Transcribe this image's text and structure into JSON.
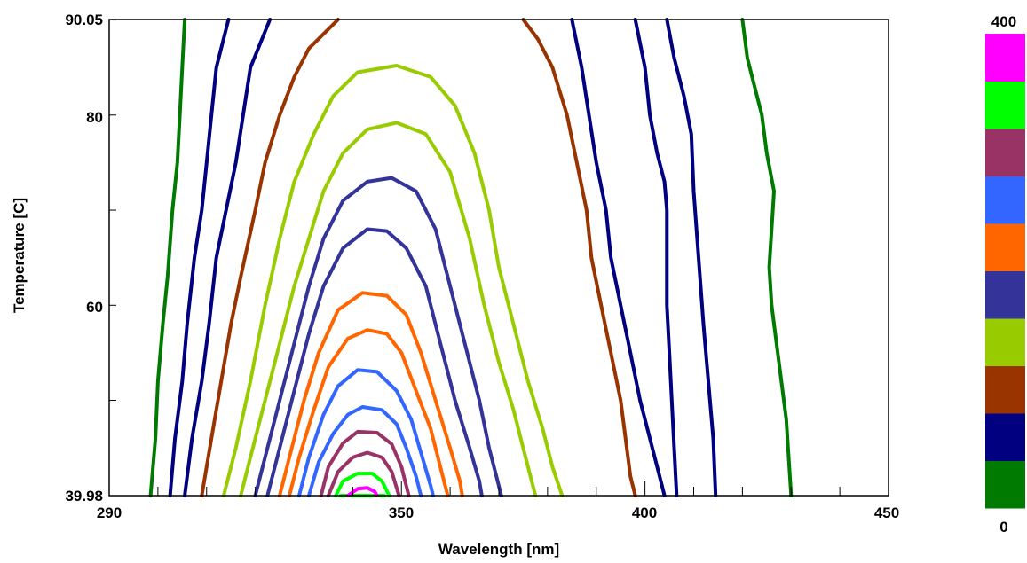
{
  "chart_data": {
    "type": "contour",
    "xlabel": "Wavelength [nm]",
    "ylabel": "Temperature [C]",
    "xlim": [
      290,
      450
    ],
    "ylim": [
      39.98,
      90.05
    ],
    "x_ticks": [
      "290",
      "350",
      "400",
      "450"
    ],
    "y_ticks": [
      "39.98",
      "60",
      "80",
      "90.05"
    ],
    "colorbar": {
      "min_label": "0",
      "max_label": "400",
      "colors": [
        "#007a00",
        "#000080",
        "#993300",
        "#99cc00",
        "#333399",
        "#ff6600",
        "#3366ff",
        "#993366",
        "#00ff00",
        "#ff00ff"
      ]
    },
    "contours": [
      {
        "color": "#007a00",
        "points": [
          [
            298.5,
            39.98
          ],
          [
            299.5,
            46
          ],
          [
            300,
            52
          ],
          [
            301,
            58
          ],
          [
            302,
            63
          ],
          [
            303,
            70
          ],
          [
            304,
            75
          ],
          [
            304.5,
            80
          ],
          [
            305,
            85
          ],
          [
            305.5,
            90.05
          ]
        ]
      },
      {
        "color": "#000080",
        "points": [
          [
            302.5,
            39.98
          ],
          [
            303.5,
            46
          ],
          [
            305,
            52
          ],
          [
            306,
            58
          ],
          [
            307.5,
            65
          ],
          [
            309,
            70
          ],
          [
            310,
            75
          ],
          [
            311,
            80
          ],
          [
            312,
            85
          ],
          [
            314.5,
            90.05
          ]
        ]
      },
      {
        "color": "#000080",
        "points": [
          [
            305.5,
            39.98
          ],
          [
            307,
            46
          ],
          [
            309,
            52
          ],
          [
            310.5,
            58
          ],
          [
            312,
            65
          ],
          [
            314,
            70
          ],
          [
            316,
            75
          ],
          [
            317.5,
            80
          ],
          [
            319,
            85
          ],
          [
            323,
            90.05
          ]
        ]
      },
      {
        "color": "#993300",
        "points": [
          [
            309,
            39.98
          ],
          [
            311,
            46
          ],
          [
            313,
            52
          ],
          [
            315,
            58
          ],
          [
            317,
            63
          ],
          [
            320,
            70
          ],
          [
            322,
            75
          ],
          [
            325,
            80
          ],
          [
            328,
            84
          ],
          [
            331,
            87
          ],
          [
            337,
            90.05
          ]
        ]
      },
      {
        "color": "#99cc00",
        "points": [
          [
            313.5,
            39.98
          ],
          [
            316,
            45
          ],
          [
            319,
            52
          ],
          [
            322,
            60
          ],
          [
            325,
            67
          ],
          [
            328,
            73
          ],
          [
            332,
            78
          ],
          [
            336,
            82
          ],
          [
            341,
            84.5
          ],
          [
            349,
            85.2
          ],
          [
            356,
            84
          ],
          [
            361,
            81
          ],
          [
            365,
            76
          ],
          [
            368,
            70
          ],
          [
            370,
            64
          ],
          [
            373,
            58
          ],
          [
            376,
            52
          ],
          [
            379,
            47
          ],
          [
            381,
            43
          ],
          [
            383,
            39.98
          ]
        ]
      },
      {
        "color": "#99cc00",
        "points": [
          [
            317,
            39.98
          ],
          [
            319,
            44
          ],
          [
            322,
            50
          ],
          [
            325,
            56
          ],
          [
            328,
            62
          ],
          [
            331,
            67
          ],
          [
            334,
            72
          ],
          [
            338,
            76
          ],
          [
            343,
            78.5
          ],
          [
            349,
            79.2
          ],
          [
            355,
            78
          ],
          [
            360,
            74
          ],
          [
            364,
            67
          ],
          [
            367,
            60
          ],
          [
            370,
            54
          ],
          [
            373,
            49
          ],
          [
            375,
            45
          ],
          [
            377,
            41
          ],
          [
            377.5,
            39.98
          ]
        ]
      },
      {
        "color": "#333399",
        "points": [
          [
            320,
            39.98
          ],
          [
            322,
            44
          ],
          [
            325,
            50
          ],
          [
            328,
            56
          ],
          [
            331,
            62
          ],
          [
            334,
            67
          ],
          [
            338,
            71
          ],
          [
            343,
            73
          ],
          [
            348,
            73.4
          ],
          [
            353,
            72
          ],
          [
            357,
            68
          ],
          [
            360,
            62
          ],
          [
            363,
            56
          ],
          [
            366,
            50
          ],
          [
            368,
            45
          ],
          [
            370,
            41
          ],
          [
            370.5,
            39.98
          ]
        ]
      },
      {
        "color": "#333399",
        "points": [
          [
            322.5,
            39.98
          ],
          [
            325,
            45
          ],
          [
            328,
            51
          ],
          [
            331,
            57
          ],
          [
            334,
            62
          ],
          [
            338,
            66
          ],
          [
            343,
            68
          ],
          [
            347,
            67.8
          ],
          [
            351,
            66
          ],
          [
            355,
            62
          ],
          [
            358,
            56
          ],
          [
            361,
            50
          ],
          [
            364,
            45
          ],
          [
            366,
            41.5
          ],
          [
            366.5,
            39.98
          ]
        ]
      },
      {
        "color": "#ff6600",
        "points": [
          [
            325,
            39.98
          ],
          [
            327,
            44
          ],
          [
            330,
            50
          ],
          [
            333,
            55
          ],
          [
            337,
            59.5
          ],
          [
            342,
            61.3
          ],
          [
            347,
            61
          ],
          [
            351,
            59
          ],
          [
            354,
            55
          ],
          [
            357,
            50
          ],
          [
            360,
            45
          ],
          [
            362,
            41.5
          ],
          [
            362.5,
            39.98
          ]
        ]
      },
      {
        "color": "#ff6600",
        "points": [
          [
            327,
            39.98
          ],
          [
            329,
            44
          ],
          [
            332,
            49
          ],
          [
            335,
            53.5
          ],
          [
            339,
            56.5
          ],
          [
            343,
            57.4
          ],
          [
            347,
            57
          ],
          [
            350,
            55
          ],
          [
            353,
            51
          ],
          [
            356,
            47
          ],
          [
            358,
            43
          ],
          [
            359.5,
            39.98
          ]
        ]
      },
      {
        "color": "#3366ff",
        "points": [
          [
            329,
            39.98
          ],
          [
            331,
            44
          ],
          [
            334,
            48.5
          ],
          [
            337,
            51.5
          ],
          [
            341,
            53.2
          ],
          [
            345,
            53
          ],
          [
            349,
            51
          ],
          [
            352,
            48
          ],
          [
            354,
            44.5
          ],
          [
            356,
            41
          ],
          [
            356.5,
            39.98
          ]
        ]
      },
      {
        "color": "#3366ff",
        "points": [
          [
            331,
            39.98
          ],
          [
            333,
            43.5
          ],
          [
            336,
            46.5
          ],
          [
            339,
            48.5
          ],
          [
            342,
            49.3
          ],
          [
            346,
            49
          ],
          [
            349,
            47.5
          ],
          [
            351,
            45
          ],
          [
            353,
            42
          ],
          [
            354,
            39.98
          ]
        ]
      },
      {
        "color": "#993366",
        "points": [
          [
            333.5,
            39.98
          ],
          [
            335,
            43
          ],
          [
            338,
            45.5
          ],
          [
            341,
            46.7
          ],
          [
            345,
            46.6
          ],
          [
            348,
            45.4
          ],
          [
            350,
            43
          ],
          [
            351.5,
            39.98
          ]
        ]
      },
      {
        "color": "#993366",
        "points": [
          [
            335,
            39.98
          ],
          [
            337,
            42.5
          ],
          [
            340,
            44
          ],
          [
            343,
            44.5
          ],
          [
            346,
            44
          ],
          [
            348,
            42.5
          ],
          [
            349.5,
            39.98
          ]
        ]
      },
      {
        "color": "#00ff00",
        "points": [
          [
            336.5,
            39.98
          ],
          [
            338,
            41.5
          ],
          [
            341,
            42.3
          ],
          [
            344,
            42.3
          ],
          [
            346,
            41.5
          ],
          [
            347.5,
            39.98
          ]
        ]
      },
      {
        "color": "#00ff00",
        "points": [
          [
            337.5,
            39.98
          ],
          [
            339,
            39.6
          ],
          [
            342,
            39.8
          ],
          [
            345,
            39.5
          ],
          [
            346.5,
            39.98
          ]
        ]
      },
      {
        "color": "#ff00ff",
        "points": [
          [
            339,
            39.98
          ],
          [
            341,
            40.7
          ],
          [
            343,
            40.8
          ],
          [
            344.5,
            40.4
          ],
          [
            345,
            39.98
          ]
        ]
      },
      {
        "color": "#993300",
        "points": [
          [
            375,
            90.05
          ],
          [
            378,
            88
          ],
          [
            381,
            85
          ],
          [
            384,
            80
          ],
          [
            386,
            75
          ],
          [
            388,
            70
          ],
          [
            389,
            65
          ],
          [
            391,
            60
          ],
          [
            393,
            55
          ],
          [
            395,
            50
          ],
          [
            396,
            46
          ],
          [
            397,
            42
          ],
          [
            398,
            39.98
          ]
        ]
      },
      {
        "color": "#000080",
        "points": [
          [
            385,
            90.05
          ],
          [
            387,
            85
          ],
          [
            388.5,
            80
          ],
          [
            390,
            75
          ],
          [
            392,
            70
          ],
          [
            393,
            65
          ],
          [
            395,
            60
          ],
          [
            397,
            55
          ],
          [
            399,
            50
          ],
          [
            401,
            46
          ],
          [
            403,
            42
          ],
          [
            404,
            39.98
          ]
        ]
      },
      {
        "color": "#000080",
        "points": [
          [
            398,
            90.05
          ],
          [
            400,
            85
          ],
          [
            401,
            80
          ],
          [
            402.5,
            76
          ],
          [
            404,
            73
          ],
          [
            404.5,
            70
          ],
          [
            404.5,
            60
          ],
          [
            405,
            55
          ],
          [
            405.5,
            50
          ],
          [
            406,
            45
          ],
          [
            406.5,
            39.98
          ]
        ]
      },
      {
        "color": "#000080",
        "points": [
          [
            404.5,
            90.05
          ],
          [
            406,
            86
          ],
          [
            408,
            82
          ],
          [
            409.5,
            78
          ],
          [
            410,
            72
          ],
          [
            411,
            65
          ],
          [
            412,
            58
          ],
          [
            413,
            52
          ],
          [
            414,
            46
          ],
          [
            414.5,
            39.98
          ]
        ]
      },
      {
        "color": "#007a00",
        "points": [
          [
            420,
            90.05
          ],
          [
            421,
            86
          ],
          [
            423,
            82
          ],
          [
            424,
            80
          ],
          [
            425,
            76
          ],
          [
            426.5,
            72
          ],
          [
            426,
            68
          ],
          [
            425.5,
            64
          ],
          [
            426,
            60
          ],
          [
            427,
            56
          ],
          [
            428,
            52
          ],
          [
            429,
            48
          ],
          [
            429.5,
            44
          ],
          [
            430,
            39.98
          ]
        ]
      }
    ]
  }
}
